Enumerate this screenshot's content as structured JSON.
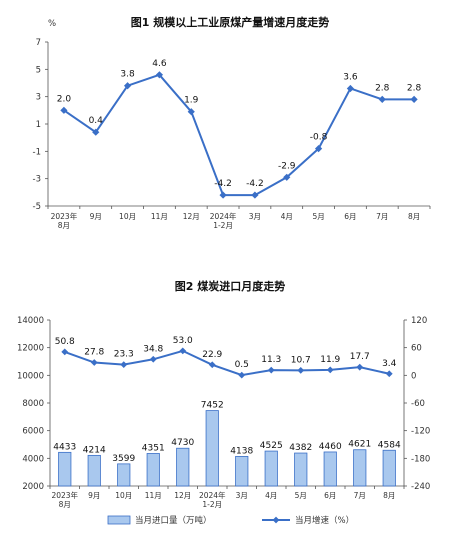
{
  "chart_data": [
    {
      "type": "line",
      "title": "图1  规模以上工业原煤产量增速月度走势",
      "ylabel": "%",
      "categories": [
        "2023年\n8月",
        "9月",
        "10月",
        "11月",
        "12月",
        "2024年\n1-2月",
        "3月",
        "4月",
        "5月",
        "6月",
        "7月",
        "8月"
      ],
      "yticks": [
        7,
        5,
        3,
        1,
        -1,
        -3,
        -5
      ],
      "ylim": [
        -5,
        7
      ],
      "series": [
        {
          "values": [
            2.0,
            0.4,
            3.8,
            4.6,
            1.9,
            -4.2,
            -4.2,
            -2.9,
            -0.8,
            3.6,
            2.8,
            2.8
          ]
        }
      ],
      "data_labels": [
        "2.0",
        "0.4",
        "3.8",
        "4.6",
        "1.9",
        "-4.2",
        "-4.2",
        "-2.9",
        "-0.8",
        "3.6",
        "2.8",
        "2.8"
      ],
      "colors": {
        "line": "#3a6fc7",
        "marker": "#3a6fc7"
      },
      "grid": false
    },
    {
      "type": "bar",
      "title": "图2  煤炭进口月度走势",
      "categories": [
        "2023年\n8月",
        "9月",
        "10月",
        "11月",
        "12月",
        "2024年\n1-2月",
        "3月",
        "4月",
        "5月",
        "6月",
        "7月",
        "8月"
      ],
      "left_axis": {
        "ylim": [
          2000,
          14000
        ],
        "ticks": [
          14000,
          12000,
          10000,
          8000,
          6000,
          4000,
          2000
        ]
      },
      "right_axis": {
        "ylim": [
          -240,
          120
        ],
        "ticks": [
          120,
          60,
          0,
          -60,
          -120,
          -180,
          -240
        ]
      },
      "series": [
        {
          "name": "当月进口量（万吨）",
          "type": "bar",
          "axis": "left",
          "values": [
            4433,
            4214,
            3599,
            4351,
            4730,
            7452,
            4138,
            4525,
            4382,
            4460,
            4621,
            4584
          ],
          "data_labels": [
            "4433",
            "4214",
            "3599",
            "4351",
            "4730",
            "7452",
            "4138",
            "4525",
            "4382",
            "4460",
            "4621",
            "4584"
          ]
        },
        {
          "name": "当月增速（%）",
          "type": "line",
          "axis": "right",
          "values": [
            50.8,
            27.8,
            23.3,
            34.8,
            53.0,
            22.9,
            0.5,
            11.3,
            10.7,
            11.9,
            17.7,
            3.4
          ],
          "data_labels": [
            "50.8",
            "27.8",
            "23.3",
            "34.8",
            "53.0",
            "22.9",
            "0.5",
            "11.3",
            "10.7",
            "11.9",
            "17.7",
            "3.4"
          ]
        }
      ],
      "legend_position": "bottom",
      "colors": {
        "bar_fill": "#a9c8ee",
        "bar_stroke": "#3a6fc7",
        "line": "#3a6fc7"
      },
      "grid": false
    }
  ]
}
